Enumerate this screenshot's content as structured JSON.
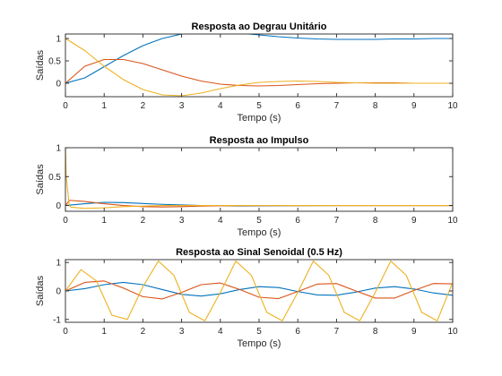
{
  "chart_data": [
    {
      "type": "line",
      "title": "Resposta ao Degrau Unitário",
      "xlabel": "Tempo (s)",
      "ylabel": "Saídas",
      "xlim": [
        0,
        10
      ],
      "ylim": [
        -0.3,
        1.1
      ],
      "xticks": [
        0,
        1,
        2,
        3,
        4,
        5,
        6,
        7,
        8,
        9,
        10
      ],
      "yticks": [
        0,
        0.5,
        1
      ],
      "ytick_labels": [
        "0",
        "0.5",
        "1"
      ],
      "grid": false,
      "series": [
        {
          "color": "#0072BD",
          "x": [
            0,
            0.5,
            1,
            1.5,
            2,
            2.5,
            3,
            3.5,
            4,
            4.5,
            5,
            5.5,
            6,
            6.5,
            7,
            7.5,
            8,
            8.5,
            9,
            9.5,
            10
          ],
          "y": [
            0,
            0.12,
            0.37,
            0.62,
            0.84,
            1.0,
            1.1,
            1.14,
            1.14,
            1.12,
            1.08,
            1.04,
            1.01,
            0.99,
            0.98,
            0.98,
            0.98,
            0.99,
            0.99,
            1.0,
            1.0
          ]
        },
        {
          "color": "#D95319",
          "x": [
            0,
            0.5,
            1,
            1.5,
            2,
            2.5,
            3,
            3.5,
            4,
            4.5,
            5,
            5.5,
            6,
            6.5,
            7,
            7.5,
            8,
            8.5,
            9,
            9.5,
            10
          ],
          "y": [
            0,
            0.38,
            0.53,
            0.53,
            0.44,
            0.3,
            0.16,
            0.05,
            -0.02,
            -0.05,
            -0.06,
            -0.05,
            -0.03,
            -0.01,
            0.0,
            0.01,
            0.01,
            0.01,
            0.0,
            0.0,
            0.0
          ]
        },
        {
          "color": "#EDB120",
          "x": [
            0,
            0.5,
            1,
            1.5,
            2,
            2.5,
            3,
            3.5,
            4,
            4.5,
            5,
            5.5,
            6,
            6.5,
            7,
            7.5,
            8,
            8.5,
            9,
            9.5,
            10
          ],
          "y": [
            1.0,
            0.73,
            0.38,
            0.08,
            -0.14,
            -0.26,
            -0.28,
            -0.22,
            -0.12,
            -0.04,
            0.02,
            0.04,
            0.05,
            0.04,
            0.02,
            0.01,
            0.0,
            0.0,
            0.0,
            0.0,
            0.0
          ]
        }
      ]
    },
    {
      "type": "line",
      "title": "Resposta ao Impulso",
      "xlabel": "Tempo (s)",
      "ylabel": "Saídas",
      "xlim": [
        0,
        10
      ],
      "ylim": [
        -0.1,
        1.0
      ],
      "xticks": [
        0,
        1,
        2,
        3,
        4,
        5,
        6,
        7,
        8,
        9,
        10
      ],
      "yticks": [
        0,
        0.5,
        1
      ],
      "ytick_labels": [
        "0",
        "0.5",
        "1"
      ],
      "grid": false,
      "series": [
        {
          "color": "#0072BD",
          "x": [
            0,
            0.5,
            1,
            1.5,
            2,
            2.5,
            3,
            3.5,
            4,
            4.5,
            5,
            6,
            7,
            8,
            9,
            10
          ],
          "y": [
            0,
            0.03,
            0.055,
            0.05,
            0.035,
            0.02,
            0.01,
            0.0,
            -0.005,
            -0.008,
            -0.006,
            -0.002,
            0.0,
            0.0,
            0.0,
            0.0
          ]
        },
        {
          "color": "#D95319",
          "x": [
            0,
            0.1,
            0.5,
            1,
            1.5,
            2,
            2.5,
            3,
            3.5,
            4,
            5,
            6,
            7,
            8,
            9,
            10
          ],
          "y": [
            0,
            0.09,
            0.07,
            0.03,
            0.0,
            -0.02,
            -0.025,
            -0.02,
            -0.01,
            -0.005,
            0.0,
            0.0,
            0.0,
            0.0,
            0.0,
            0.0
          ]
        },
        {
          "color": "#EDB120",
          "x": [
            0,
            0.02,
            0.1,
            0.15,
            0.5,
            1,
            1.5,
            2,
            2.5,
            3,
            4,
            5,
            6,
            7,
            8,
            9,
            10
          ],
          "y": [
            1.0,
            0.5,
            0.0,
            -0.03,
            -0.05,
            -0.04,
            -0.02,
            -0.01,
            0.0,
            0.0,
            0.0,
            0.0,
            0.0,
            0.0,
            0.0,
            0.0,
            0.0
          ]
        }
      ]
    },
    {
      "type": "line",
      "title": "Resposta ao Sinal Senoidal (0.5 Hz)",
      "xlabel": "Tempo (s)",
      "ylabel": "Saídas",
      "xlim": [
        0,
        10
      ],
      "ylim": [
        -1.1,
        1.1
      ],
      "xticks": [
        0,
        1,
        2,
        3,
        4,
        5,
        6,
        7,
        8,
        9,
        10
      ],
      "yticks": [
        -1,
        0,
        1
      ],
      "ytick_labels": [
        "-1",
        "0",
        "1"
      ],
      "grid": false,
      "series": [
        {
          "color": "#0072BD",
          "x": [
            0,
            0.5,
            1,
            1.5,
            2,
            2.5,
            3,
            3.5,
            4,
            4.5,
            5,
            5.5,
            6,
            6.5,
            7,
            7.5,
            8,
            8.5,
            9,
            9.5,
            10
          ],
          "y": [
            0,
            0.08,
            0.22,
            0.3,
            0.22,
            0.05,
            -0.12,
            -0.18,
            -0.1,
            0.05,
            0.15,
            0.12,
            -0.02,
            -0.14,
            -0.15,
            -0.04,
            0.1,
            0.15,
            0.07,
            -0.07,
            -0.15
          ]
        },
        {
          "color": "#D95319",
          "x": [
            0,
            0.5,
            1,
            1.5,
            2,
            2.5,
            3,
            3.5,
            4,
            4.5,
            5,
            5.5,
            6,
            6.5,
            7,
            7.5,
            8,
            8.5,
            9,
            9.5,
            10
          ],
          "y": [
            0,
            0.3,
            0.35,
            0.1,
            -0.2,
            -0.28,
            -0.05,
            0.22,
            0.28,
            0.05,
            -0.22,
            -0.27,
            -0.02,
            0.24,
            0.26,
            0.0,
            -0.25,
            -0.25,
            0.02,
            0.26,
            0.25
          ]
        },
        {
          "color": "#EDB120",
          "x": [
            0,
            0.4,
            0.8,
            1.2,
            1.6,
            2,
            2.4,
            2.8,
            3.2,
            3.6,
            4,
            4.4,
            4.8,
            5.2,
            5.6,
            6,
            6.4,
            6.8,
            7.2,
            7.6,
            8,
            8.4,
            8.8,
            9.2,
            9.6,
            10
          ],
          "y": [
            0,
            0.75,
            0.35,
            -0.85,
            -1.0,
            0.15,
            1.05,
            0.55,
            -0.75,
            -1.05,
            -0.05,
            1.05,
            0.55,
            -0.75,
            -1.05,
            -0.05,
            1.05,
            0.55,
            -0.75,
            -1.05,
            -0.05,
            1.05,
            0.55,
            -0.75,
            -1.05,
            0.3
          ]
        }
      ]
    }
  ]
}
